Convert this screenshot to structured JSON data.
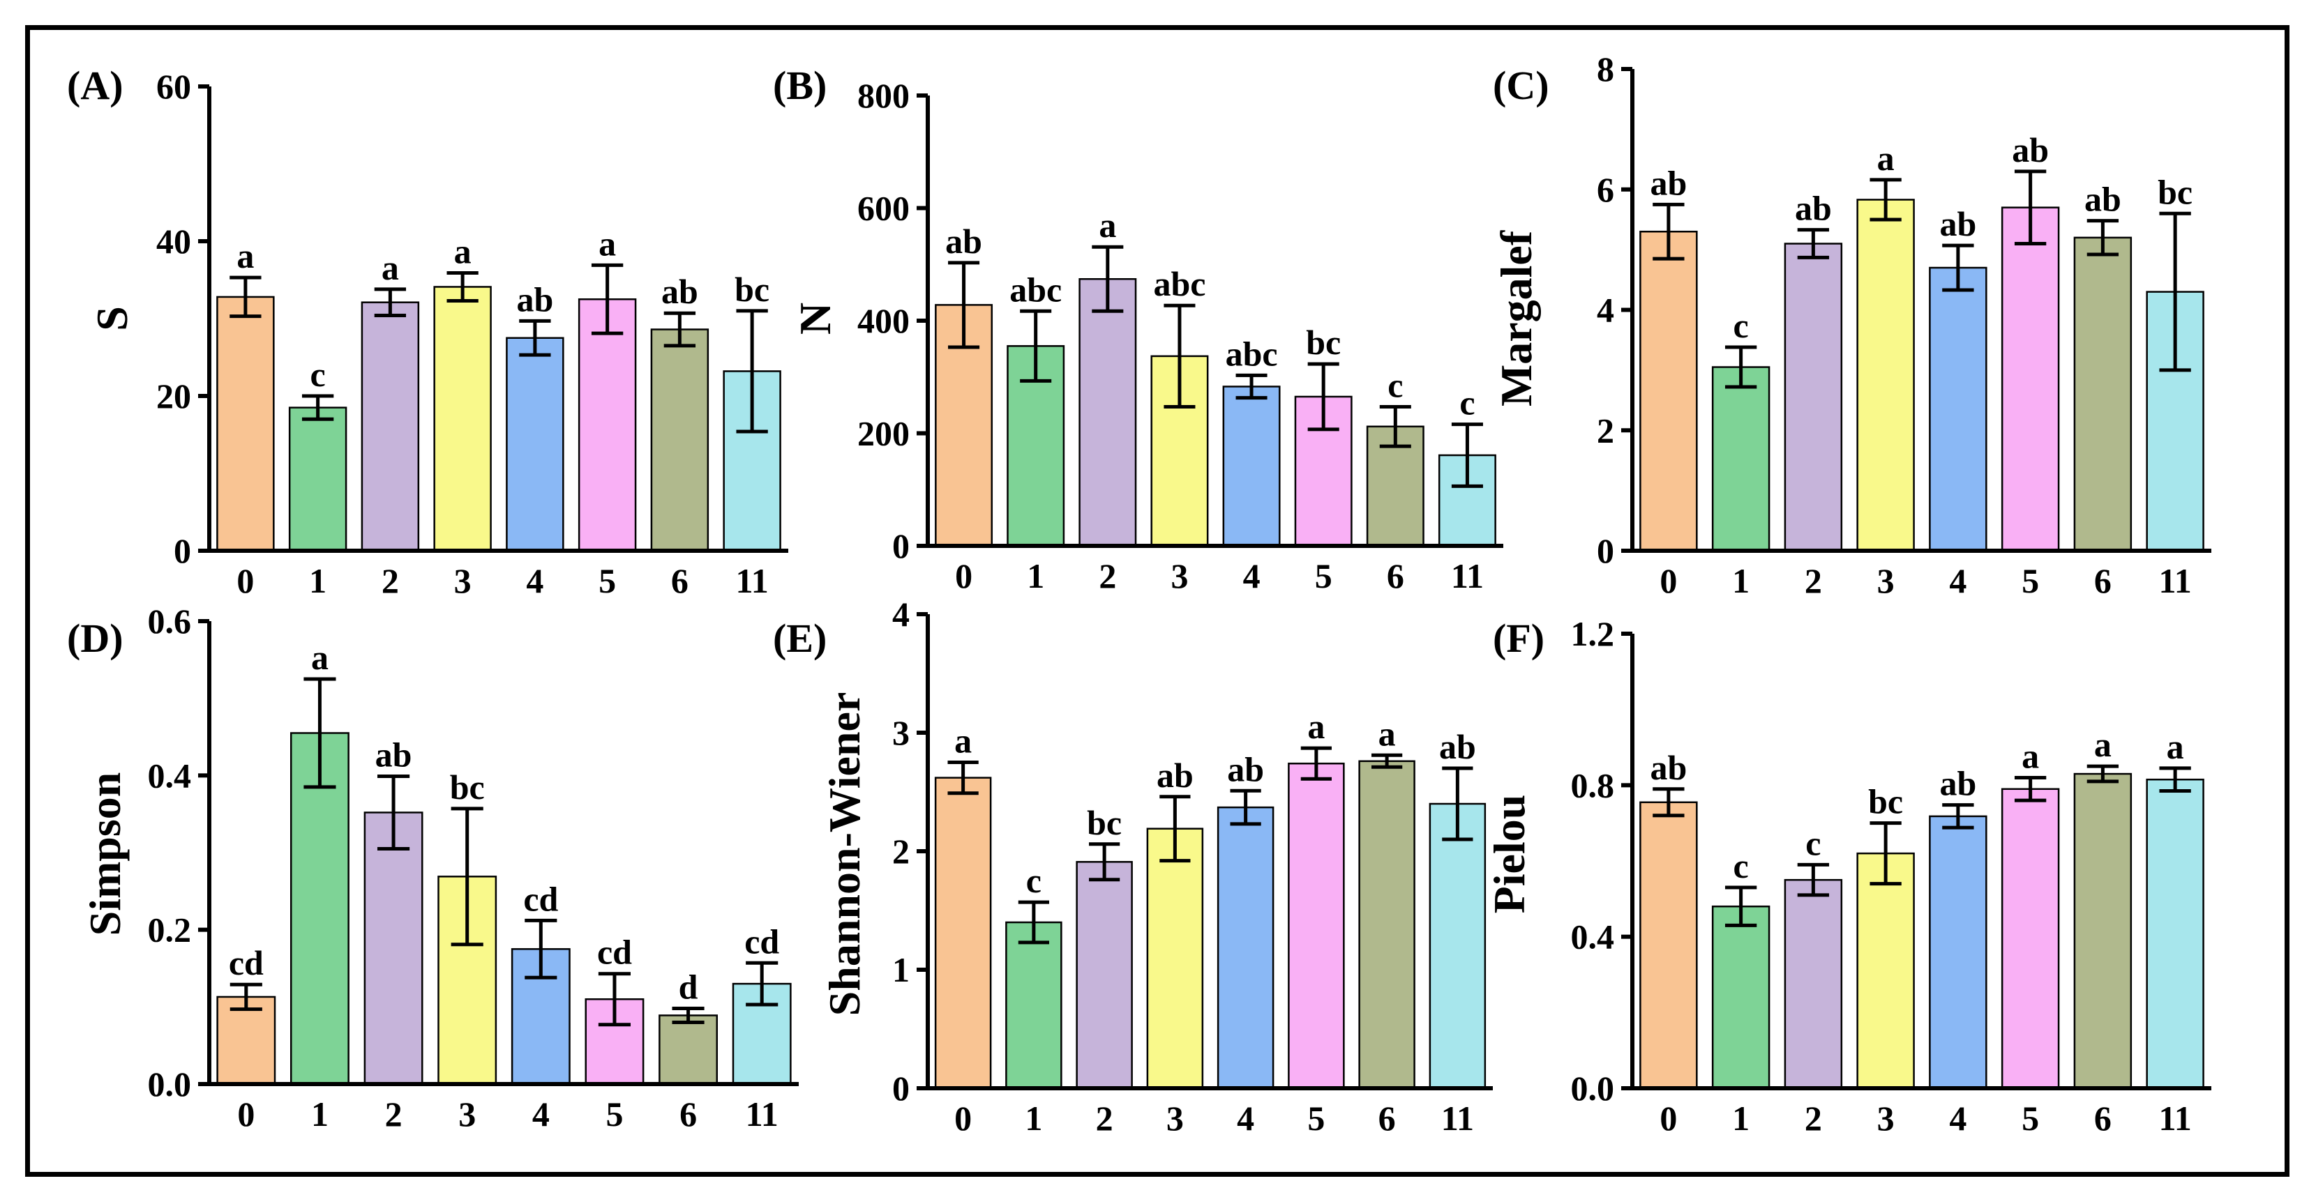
{
  "chart_data": [
    {
      "type": "bar",
      "panel_label": "(A)",
      "ylabel": "S",
      "ylim": [
        0,
        60
      ],
      "yticks": [
        "0",
        "20",
        "40",
        "60"
      ],
      "categories": [
        "0",
        "1",
        "2",
        "3",
        "4",
        "5",
        "6",
        "11"
      ],
      "values": [
        32.8,
        18.5,
        32.1,
        34.1,
        27.5,
        32.5,
        28.6,
        23.2
      ],
      "errors": [
        2.5,
        1.5,
        1.7,
        1.8,
        2.2,
        4.4,
        2.1,
        7.8
      ],
      "letters": [
        "a",
        "c",
        "a",
        "a",
        "ab",
        "a",
        "ab",
        "bc"
      ]
    },
    {
      "type": "bar",
      "panel_label": "(B)",
      "ylabel": "N",
      "ylim": [
        0,
        800
      ],
      "yticks": [
        "0",
        "200",
        "400",
        "600",
        "800"
      ],
      "categories": [
        "0",
        "1",
        "2",
        "3",
        "4",
        "5",
        "6",
        "11"
      ],
      "values": [
        428,
        355,
        474,
        337,
        283,
        265,
        212,
        161
      ],
      "errors": [
        75,
        62,
        57,
        90,
        20,
        58,
        35,
        55
      ],
      "letters": [
        "ab",
        "abc",
        "a",
        "abc",
        "abc",
        "bc",
        "c",
        "c"
      ]
    },
    {
      "type": "bar",
      "panel_label": "(C)",
      "ylabel": "Margalef",
      "ylim": [
        0,
        8
      ],
      "yticks": [
        "0",
        "2",
        "4",
        "6",
        "8"
      ],
      "categories": [
        "0",
        "1",
        "2",
        "3",
        "4",
        "5",
        "6",
        "11"
      ],
      "values": [
        5.3,
        3.05,
        5.1,
        5.83,
        4.7,
        5.7,
        5.2,
        4.3
      ],
      "errors": [
        0.45,
        0.33,
        0.23,
        0.33,
        0.37,
        0.6,
        0.28,
        1.3
      ],
      "letters": [
        "ab",
        "c",
        "ab",
        "a",
        "ab",
        "ab",
        "ab",
        "bc"
      ]
    },
    {
      "type": "bar",
      "panel_label": "(D)",
      "ylabel": "Simpson",
      "ylim": [
        0,
        0.6
      ],
      "yticks": [
        "0.0",
        "0.2",
        "0.4",
        "0.6"
      ],
      "categories": [
        "0",
        "1",
        "2",
        "3",
        "4",
        "5",
        "6",
        "11"
      ],
      "values": [
        0.113,
        0.455,
        0.352,
        0.269,
        0.175,
        0.11,
        0.089,
        0.13
      ],
      "errors": [
        0.016,
        0.07,
        0.047,
        0.088,
        0.037,
        0.033,
        0.009,
        0.027
      ],
      "letters": [
        "cd",
        "a",
        "ab",
        "bc",
        "cd",
        "cd",
        "d",
        "cd"
      ]
    },
    {
      "type": "bar",
      "panel_label": "(E)",
      "ylabel": "Shannon-Wiener",
      "ylim": [
        0,
        4
      ],
      "yticks": [
        "0",
        "1",
        "2",
        "3",
        "4"
      ],
      "categories": [
        "0",
        "1",
        "2",
        "3",
        "4",
        "5",
        "6",
        "11"
      ],
      "values": [
        2.62,
        1.4,
        1.91,
        2.19,
        2.37,
        2.74,
        2.76,
        2.4
      ],
      "errors": [
        0.13,
        0.17,
        0.15,
        0.27,
        0.14,
        0.13,
        0.05,
        0.3
      ],
      "letters": [
        "a",
        "c",
        "bc",
        "ab",
        "ab",
        "a",
        "a",
        "ab"
      ]
    },
    {
      "type": "bar",
      "panel_label": "(F)",
      "ylabel": "Pielou",
      "ylim": [
        0,
        1.2
      ],
      "yticks": [
        "0.0",
        "0.4",
        "0.8",
        "1.2"
      ],
      "categories": [
        "0",
        "1",
        "2",
        "3",
        "4",
        "5",
        "6",
        "11"
      ],
      "values": [
        0.755,
        0.48,
        0.55,
        0.62,
        0.718,
        0.79,
        0.83,
        0.815
      ],
      "errors": [
        0.035,
        0.05,
        0.04,
        0.08,
        0.03,
        0.03,
        0.02,
        0.03
      ],
      "letters": [
        "ab",
        "c",
        "c",
        "bc",
        "ab",
        "a",
        "a",
        "a"
      ]
    }
  ],
  "colors": [
    "#f9c493",
    "#7ed396",
    "#c6b4da",
    "#f9f98b",
    "#8ab8f5",
    "#f9b0f5",
    "#b0b98d",
    "#a7e6ec"
  ]
}
